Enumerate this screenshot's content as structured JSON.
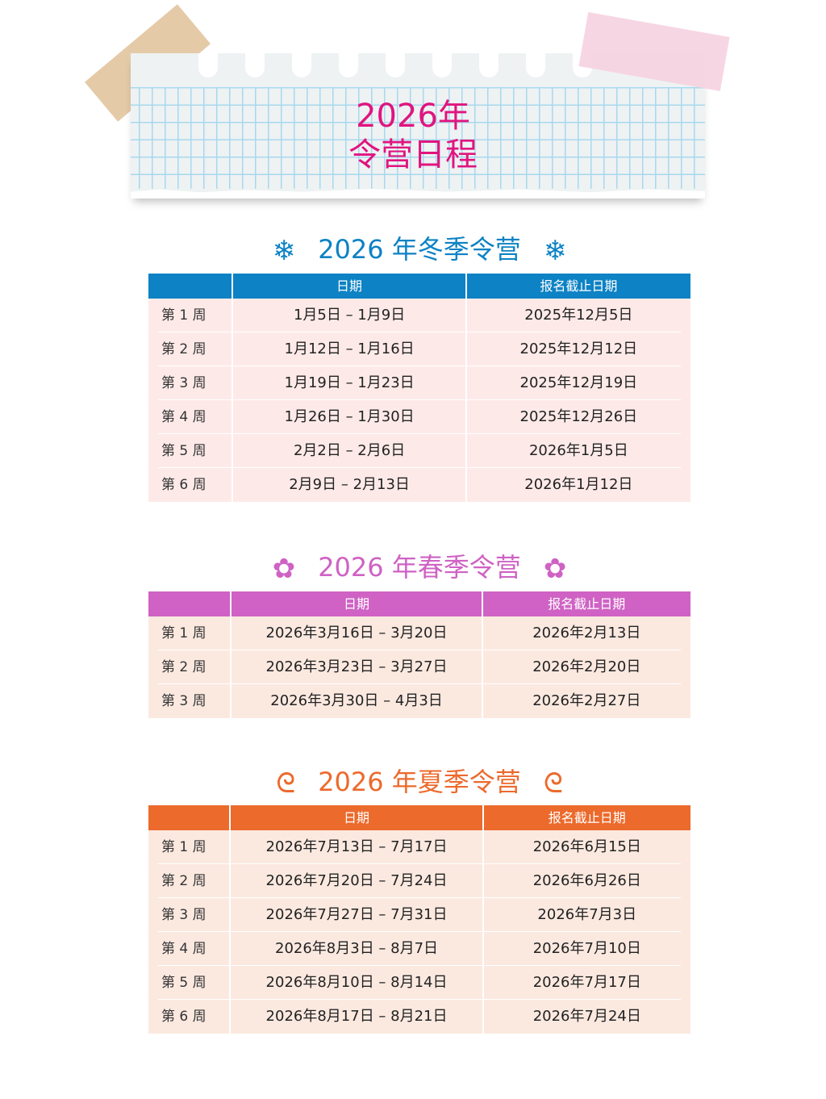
{
  "banner": {
    "line1": "2026年",
    "line2": "令营日程",
    "color": "#e0157f"
  },
  "columns": {
    "dates": "日期",
    "deadline": "报名截止日期"
  },
  "sections": [
    {
      "id": "winter",
      "title": "2026 年冬季令营",
      "icon": "snowflake-icon",
      "glyph": "❄",
      "color": "#0d82c4",
      "row_bg": "#fdeae8",
      "rows": [
        [
          "第 1 周",
          "1月5日 – 1月9日",
          "2025年12月5日"
        ],
        [
          "第 2 周",
          "1月12日 – 1月16日",
          "2025年12月12日"
        ],
        [
          "第 3 周",
          "1月19日 – 1月23日",
          "2025年12月19日"
        ],
        [
          "第 4 周",
          "1月26日 – 1月30日",
          "2025年12月26日"
        ],
        [
          "第 5 周",
          "2月2日 – 2月6日",
          "2026年1月5日"
        ],
        [
          "第 6 周",
          "2月9日 – 2月13日",
          "2026年1月12日"
        ]
      ]
    },
    {
      "id": "spring",
      "title": "2026 年春季令营",
      "icon": "cherry-blossom-icon",
      "glyph": "✿",
      "color": "#cf62c4",
      "row_bg": "#fbe9e0",
      "rows": [
        [
          "第 1 周",
          "2026年3月16日 – 3月20日",
          "2026年2月13日"
        ],
        [
          "第 2 周",
          "2026年3月23日 – 3月27日",
          "2026年2月20日"
        ],
        [
          "第 3 周",
          "2026年3月30日 – 4月3日",
          "2026年2月27日"
        ]
      ]
    },
    {
      "id": "summer",
      "title": "2026 年夏季令营",
      "icon": "wave-icon",
      "glyph": "ᘓ",
      "color": "#ec6a2c",
      "row_bg": "#fbe9e0",
      "rows": [
        [
          "第 1 周",
          "2026年7月13日 – 7月17日",
          "2026年6月15日"
        ],
        [
          "第 2 周",
          "2026年7月20日 – 7月24日",
          "2026年6月26日"
        ],
        [
          "第 3 周",
          "2026年7月27日 – 7月31日",
          "2026年7月3日"
        ],
        [
          "第 4 周",
          "2026年8月3日 – 8月7日",
          "2026年7月10日"
        ],
        [
          "第 5 周",
          "2026年8月10日 – 8月14日",
          "2026年7月17日"
        ],
        [
          "第 6 周",
          "2026年8月17日 – 8月21日",
          "2026年7月24日"
        ]
      ]
    }
  ]
}
